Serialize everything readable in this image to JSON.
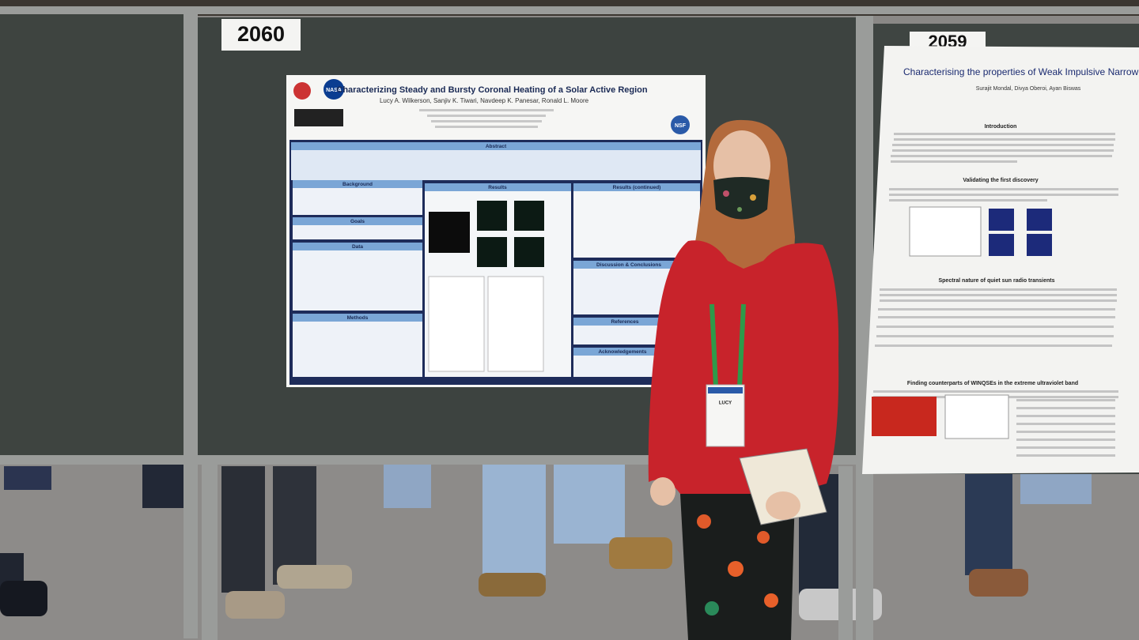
{
  "booths": {
    "left": "2060",
    "right": "2059"
  },
  "poster_left": {
    "title": "Characterizing Steady and Bursty Coronal Heating of a Solar Active Region",
    "authors": "Lucy A. Wilkerson, Sanjiv K. Tiwari, Navdeep K. Panesar, Ronald L. Moore",
    "logos": [
      "NASA",
      "NSF"
    ],
    "sections": [
      "Abstract",
      "Background",
      "Goals",
      "Data",
      "Methods",
      "Results",
      "Results (continued)",
      "Discussion & Conclusions",
      "References",
      "Acknowledgements"
    ]
  },
  "poster_right": {
    "title": "Characterising the properties of Weak Impulsive Narrowband",
    "authors": "Surajit Mondal, Divya Oberoi, Ayan Biswas",
    "sections": [
      "Introduction",
      "Validating the first discovery",
      "Spectral nature of quiet sun radio transients",
      "Finding counterparts of WINQSEs in the extreme ultraviolet band"
    ]
  },
  "badge": {
    "name": "LUCY"
  }
}
